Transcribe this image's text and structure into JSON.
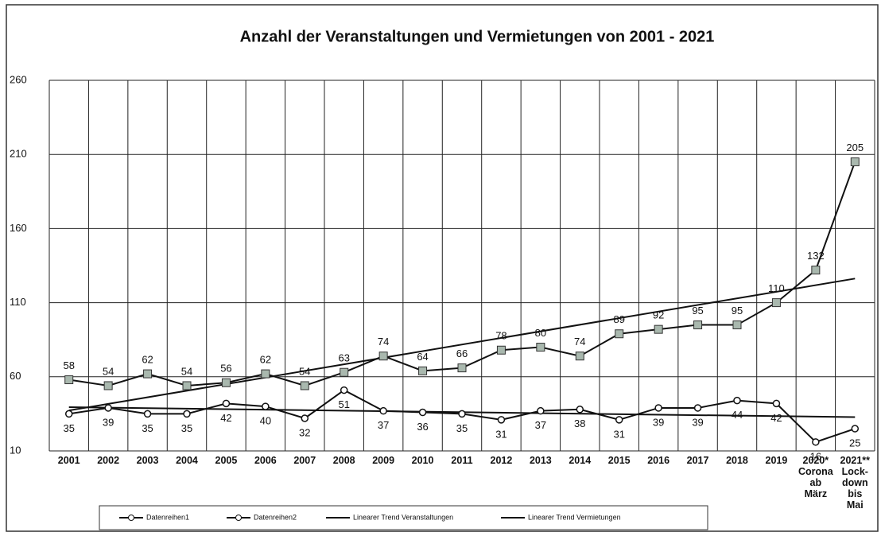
{
  "chart_data": {
    "type": "line",
    "title": "Anzahl der Veranstaltungen und Vermietungen von 2001 - 2021",
    "categories": [
      "2001",
      "2002",
      "2003",
      "2004",
      "2005",
      "2006",
      "2007",
      "2008",
      "2009",
      "2010",
      "2011",
      "2012",
      "2013",
      "2014",
      "2015",
      "2016",
      "2017",
      "2018",
      "2019",
      "2020*\nCorona\nab\nMärz",
      "2021**\nLock-\ndown\nbis\nMai"
    ],
    "series": [
      {
        "name": "Datenreihen1",
        "color": "#ffffff",
        "marker": "circle",
        "values": [
          35,
          39,
          35,
          35,
          42,
          40,
          32,
          51,
          37,
          36,
          35,
          31,
          37,
          38,
          31,
          39,
          39,
          44,
          42,
          16,
          25
        ]
      },
      {
        "name": "Datenreihen2",
        "color": "#a9b8ae",
        "marker": "square",
        "values": [
          58,
          54,
          62,
          54,
          56,
          62,
          54,
          63,
          74,
          64,
          66,
          78,
          80,
          74,
          89,
          92,
          95,
          95,
          110,
          132,
          205
        ]
      }
    ],
    "trend_lines": [
      {
        "name": "Linearer Trend Veranstaltungen",
        "series": 1
      },
      {
        "name": "Linearer Trend Vermietungen",
        "series": 0
      }
    ],
    "ylim": [
      10,
      260
    ],
    "yticks": [
      10,
      60,
      110,
      160,
      210,
      260
    ],
    "grid": true
  }
}
